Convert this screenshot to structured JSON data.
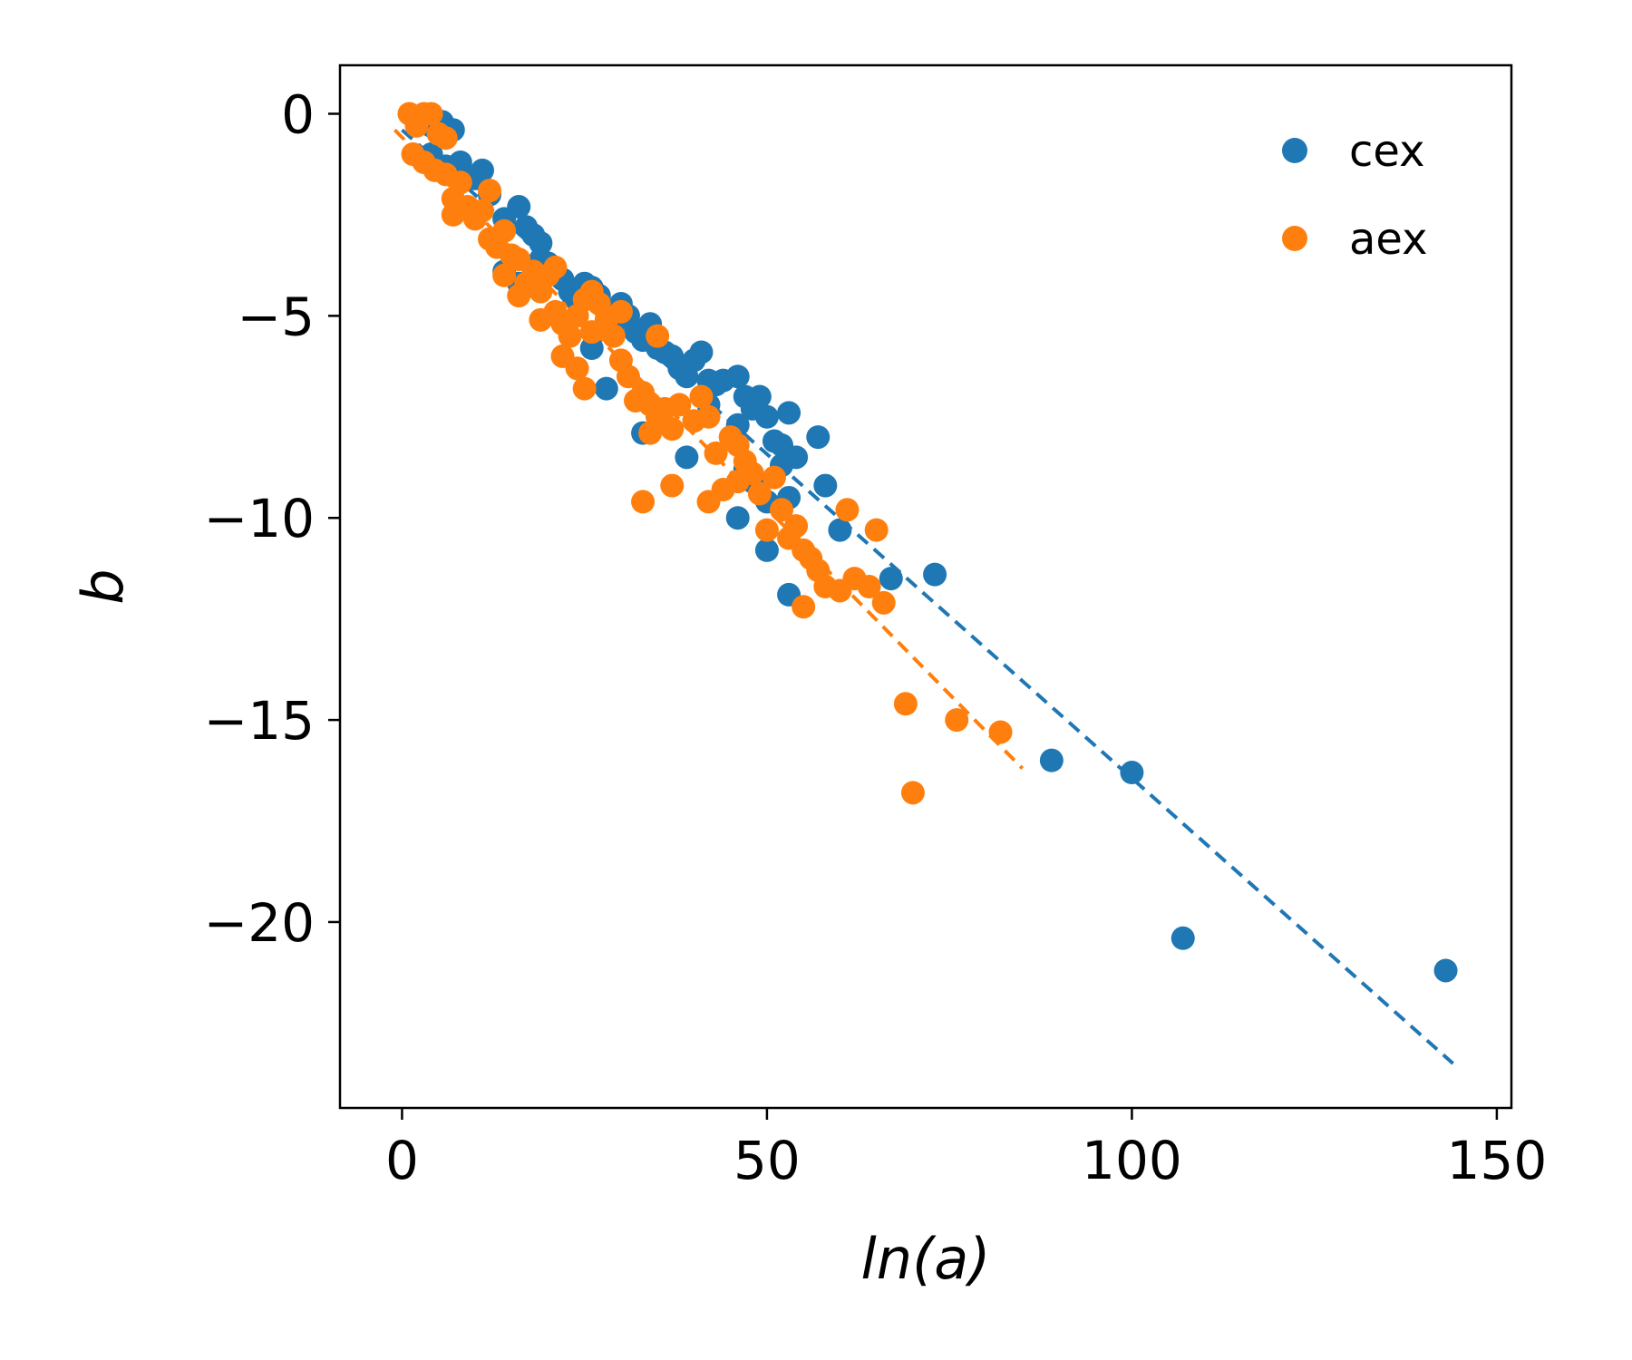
{
  "chart_data": {
    "type": "scatter",
    "title": "",
    "xlabel": "ln(a)",
    "ylabel": "b",
    "xlim": [
      -8.5,
      152
    ],
    "ylim": [
      -24.6,
      1.2
    ],
    "xticks": [
      0,
      50,
      100,
      150
    ],
    "yticks": [
      0,
      -5,
      -10,
      -15,
      -20
    ],
    "x_tick_labels": [
      "0",
      "50",
      "100",
      "150"
    ],
    "y_tick_labels": [
      "0",
      "−5",
      "−10",
      "−15",
      "−20"
    ],
    "grid": false,
    "legend_position": "top-right",
    "series": [
      {
        "name": "cex",
        "color": "#1f77b4",
        "fit_line": {
          "x": [
            0,
            144
          ],
          "y": [
            -0.4,
            -23.5
          ]
        },
        "points": [
          [
            2,
            -0.2
          ],
          [
            4,
            -0.3
          ],
          [
            5.5,
            -0.2
          ],
          [
            7,
            -0.4
          ],
          [
            4,
            -1.0
          ],
          [
            6,
            -1.3
          ],
          [
            8,
            -1.2
          ],
          [
            10,
            -1.6
          ],
          [
            11,
            -1.4
          ],
          [
            12,
            -2.0
          ],
          [
            14,
            -2.6
          ],
          [
            16,
            -2.3
          ],
          [
            17,
            -2.8
          ],
          [
            18,
            -3.0
          ],
          [
            19,
            -3.2
          ],
          [
            19,
            -3.6
          ],
          [
            20,
            -3.7
          ],
          [
            14,
            -3.9
          ],
          [
            16,
            -4.2
          ],
          [
            22,
            -4.1
          ],
          [
            23,
            -4.4
          ],
          [
            24,
            -4.6
          ],
          [
            25,
            -4.2
          ],
          [
            26,
            -4.3
          ],
          [
            27,
            -4.5
          ],
          [
            28,
            -4.9
          ],
          [
            29,
            -5.2
          ],
          [
            30,
            -4.7
          ],
          [
            31,
            -5.0
          ],
          [
            32,
            -5.4
          ],
          [
            33,
            -5.6
          ],
          [
            34,
            -5.2
          ],
          [
            35,
            -5.8
          ],
          [
            36,
            -5.9
          ],
          [
            37,
            -6.0
          ],
          [
            38,
            -6.3
          ],
          [
            39,
            -6.5
          ],
          [
            40,
            -6.1
          ],
          [
            41,
            -5.9
          ],
          [
            42,
            -6.6
          ],
          [
            43,
            -6.7
          ],
          [
            44,
            -6.6
          ],
          [
            46,
            -6.5
          ],
          [
            47,
            -7.0
          ],
          [
            48,
            -7.3
          ],
          [
            49,
            -7.0
          ],
          [
            50,
            -7.5
          ],
          [
            51,
            -8.1
          ],
          [
            52,
            -8.2
          ],
          [
            53,
            -7.4
          ],
          [
            54,
            -8.5
          ],
          [
            52,
            -8.7
          ],
          [
            46,
            -7.7
          ],
          [
            47,
            -8.8
          ],
          [
            48,
            -9.1
          ],
          [
            50,
            -9.6
          ],
          [
            53,
            -9.5
          ],
          [
            57,
            -8.0
          ],
          [
            58,
            -9.2
          ],
          [
            60,
            -10.3
          ],
          [
            33,
            -7.9
          ],
          [
            35,
            -7.5
          ],
          [
            39,
            -8.5
          ],
          [
            42,
            -7.2
          ],
          [
            26,
            -5.8
          ],
          [
            28,
            -6.8
          ],
          [
            46,
            -10.0
          ],
          [
            50,
            -10.8
          ],
          [
            53,
            -11.9
          ],
          [
            67,
            -11.5
          ],
          [
            73,
            -11.4
          ],
          [
            89,
            -16.0
          ],
          [
            100,
            -16.3
          ],
          [
            107,
            -20.4
          ],
          [
            143,
            -21.2
          ]
        ]
      },
      {
        "name": "aex",
        "color": "#ff7f0e",
        "fit_line": {
          "x": [
            -1,
            85
          ],
          "y": [
            -0.4,
            -16.2
          ]
        },
        "points": [
          [
            1,
            0.0
          ],
          [
            2,
            -0.3
          ],
          [
            3,
            0.0
          ],
          [
            4,
            0.0
          ],
          [
            5,
            -0.5
          ],
          [
            6,
            -0.6
          ],
          [
            1.5,
            -1.0
          ],
          [
            3,
            -1.2
          ],
          [
            4.5,
            -1.4
          ],
          [
            6,
            -1.5
          ],
          [
            7,
            -2.1
          ],
          [
            8,
            -1.7
          ],
          [
            9,
            -2.3
          ],
          [
            7,
            -2.5
          ],
          [
            10,
            -2.6
          ],
          [
            11,
            -2.4
          ],
          [
            12,
            -1.9
          ],
          [
            12,
            -3.1
          ],
          [
            13,
            -3.3
          ],
          [
            14,
            -2.9
          ],
          [
            15,
            -3.5
          ],
          [
            16,
            -3.6
          ],
          [
            14,
            -4.0
          ],
          [
            17,
            -4.2
          ],
          [
            16,
            -4.5
          ],
          [
            18,
            -3.9
          ],
          [
            19,
            -4.4
          ],
          [
            20,
            -4.0
          ],
          [
            21,
            -3.8
          ],
          [
            19,
            -5.1
          ],
          [
            21,
            -4.9
          ],
          [
            22,
            -5.2
          ],
          [
            23,
            -5.5
          ],
          [
            24,
            -5.0
          ],
          [
            25,
            -4.6
          ],
          [
            26,
            -4.4
          ],
          [
            27,
            -4.7
          ],
          [
            28,
            -5.1
          ],
          [
            29,
            -5.5
          ],
          [
            30,
            -4.9
          ],
          [
            22,
            -6.0
          ],
          [
            24,
            -6.3
          ],
          [
            25,
            -6.8
          ],
          [
            26,
            -5.4
          ],
          [
            30,
            -6.1
          ],
          [
            31,
            -6.5
          ],
          [
            32,
            -7.1
          ],
          [
            33,
            -6.9
          ],
          [
            34,
            -7.2
          ],
          [
            35,
            -7.5
          ],
          [
            36,
            -7.3
          ],
          [
            37,
            -7.8
          ],
          [
            38,
            -7.2
          ],
          [
            40,
            -7.6
          ],
          [
            41,
            -7.0
          ],
          [
            42,
            -7.5
          ],
          [
            43,
            -8.4
          ],
          [
            45,
            -8.0
          ],
          [
            46,
            -8.2
          ],
          [
            47,
            -8.6
          ],
          [
            48,
            -8.9
          ],
          [
            49,
            -9.4
          ],
          [
            50,
            -10.3
          ],
          [
            51,
            -9.0
          ],
          [
            52,
            -9.8
          ],
          [
            53,
            -10.5
          ],
          [
            54,
            -10.2
          ],
          [
            55,
            -10.8
          ],
          [
            56,
            -11.0
          ],
          [
            57,
            -11.3
          ],
          [
            58,
            -11.7
          ],
          [
            60,
            -11.8
          ],
          [
            61,
            -9.8
          ],
          [
            62,
            -11.5
          ],
          [
            64,
            -11.7
          ],
          [
            65,
            -10.3
          ],
          [
            66,
            -12.1
          ],
          [
            42,
            -9.6
          ],
          [
            44,
            -9.3
          ],
          [
            46,
            -9.1
          ],
          [
            33,
            -9.6
          ],
          [
            34,
            -7.9
          ],
          [
            37,
            -9.2
          ],
          [
            35,
            -5.5
          ],
          [
            55,
            -12.2
          ],
          [
            69,
            -14.6
          ],
          [
            70,
            -16.8
          ],
          [
            76,
            -15.0
          ],
          [
            82,
            -15.3
          ]
        ]
      }
    ]
  }
}
